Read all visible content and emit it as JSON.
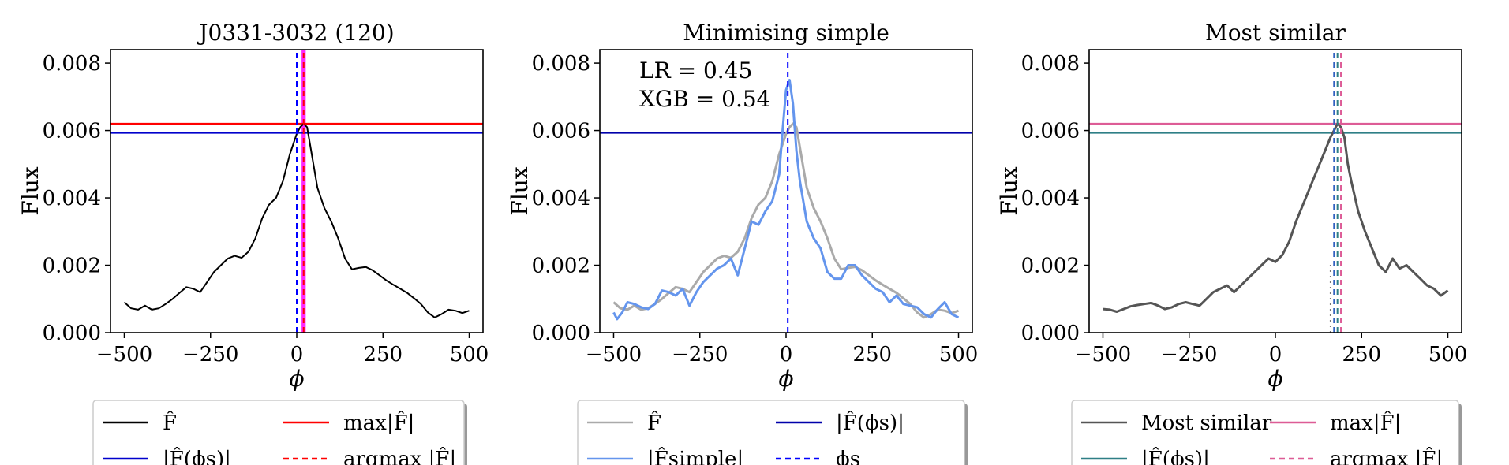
{
  "chart_data": [
    {
      "type": "line",
      "title": "J0331-3032 (120)",
      "xlabel": "ϕ",
      "ylabel": "Flux",
      "xlim": [
        -540,
        540
      ],
      "ylim": [
        0,
        0.0084
      ],
      "xticks": [
        -500,
        -250,
        0,
        250,
        500
      ],
      "xtick_labels": [
        "−500",
        "−250",
        "0",
        "250",
        "500"
      ],
      "yticks": [
        0,
        0.002,
        0.004,
        0.006,
        0.008
      ],
      "ytick_labels": [
        "0.000",
        "0.002",
        "0.004",
        "0.006",
        "0.008"
      ],
      "grid": false,
      "legend_position": "below",
      "series": [
        {
          "name": "F̂",
          "color": "#000000",
          "style": "solid",
          "x": [
            -500,
            -480,
            -460,
            -440,
            -420,
            -400,
            -380,
            -360,
            -340,
            -320,
            -300,
            -280,
            -260,
            -240,
            -220,
            -200,
            -180,
            -160,
            -140,
            -120,
            -100,
            -80,
            -60,
            -40,
            -20,
            0,
            10,
            20,
            30,
            40,
            60,
            80,
            100,
            120,
            140,
            160,
            180,
            200,
            220,
            240,
            260,
            280,
            300,
            320,
            340,
            360,
            380,
            400,
            420,
            440,
            460,
            480,
            500
          ],
          "values": [
            0.0009,
            0.00072,
            0.00068,
            0.0008,
            0.00068,
            0.00072,
            0.00085,
            0.001,
            0.00118,
            0.00135,
            0.0013,
            0.0012,
            0.0015,
            0.0018,
            0.002,
            0.0022,
            0.00228,
            0.00222,
            0.0024,
            0.0028,
            0.0034,
            0.0038,
            0.004,
            0.0045,
            0.0053,
            0.0059,
            0.0061,
            0.0062,
            0.0061,
            0.0055,
            0.0043,
            0.0037,
            0.0033,
            0.0028,
            0.0022,
            0.00188,
            0.00192,
            0.00195,
            0.00185,
            0.0017,
            0.00155,
            0.00142,
            0.0013,
            0.00118,
            0.00102,
            0.00085,
            0.0006,
            0.00045,
            0.00055,
            0.00068,
            0.00065,
            0.00058,
            0.00065
          ]
        }
      ],
      "hlines": [
        {
          "name": "max|F̂|",
          "y": 0.0062,
          "color": "#ff0000",
          "style": "solid"
        },
        {
          "name": "|F̂(ϕs)|",
          "y": 0.00593,
          "color": "#0000cc",
          "style": "solid"
        }
      ],
      "vlines": [
        {
          "x": 0,
          "color": "#0000ff",
          "style": "dashed"
        },
        {
          "x": 20,
          "color": "#ff0000",
          "style": "dashed"
        }
      ],
      "shaded_band": {
        "x0": 14,
        "x1": 26,
        "color": "#ff00ff"
      },
      "legend": [
        {
          "label": "F̂",
          "color": "#000000",
          "style": "solid"
        },
        {
          "label": "max|F̂|",
          "color": "#ff0000",
          "style": "solid"
        },
        {
          "label": "|F̂(ϕs)|",
          "color": "#0000cc",
          "style": "solid"
        },
        {
          "label": "argmax |F̂|",
          "color": "#ff0000",
          "style": "dashed"
        }
      ]
    },
    {
      "type": "line",
      "title": "Minimising simple",
      "xlabel": "ϕ",
      "ylabel": "Flux",
      "xlim": [
        -540,
        540
      ],
      "ylim": [
        0,
        0.0084
      ],
      "xticks": [
        -500,
        -250,
        0,
        250,
        500
      ],
      "xtick_labels": [
        "−500",
        "−250",
        "0",
        "250",
        "500"
      ],
      "yticks": [
        0,
        0.002,
        0.004,
        0.006,
        0.008
      ],
      "ytick_labels": [
        "0.000",
        "0.002",
        "0.004",
        "0.006",
        "0.008"
      ],
      "grid": false,
      "legend_position": "below",
      "annotations": [
        "LR = 0.45",
        "XGB = 0.54"
      ],
      "series": [
        {
          "name": "F̂",
          "color": "#aaaaaa",
          "style": "solid",
          "x": [
            -500,
            -480,
            -460,
            -440,
            -420,
            -400,
            -380,
            -360,
            -340,
            -320,
            -300,
            -280,
            -260,
            -240,
            -220,
            -200,
            -180,
            -160,
            -140,
            -120,
            -100,
            -80,
            -60,
            -40,
            -20,
            0,
            10,
            20,
            30,
            40,
            60,
            80,
            100,
            120,
            140,
            160,
            180,
            200,
            220,
            240,
            260,
            280,
            300,
            320,
            340,
            360,
            380,
            400,
            420,
            440,
            460,
            480,
            500
          ],
          "values": [
            0.0009,
            0.00072,
            0.00068,
            0.0008,
            0.00068,
            0.00072,
            0.00085,
            0.001,
            0.00118,
            0.00135,
            0.0013,
            0.0012,
            0.0015,
            0.0018,
            0.002,
            0.0022,
            0.00228,
            0.00222,
            0.0024,
            0.0028,
            0.0034,
            0.0038,
            0.004,
            0.0045,
            0.0053,
            0.0059,
            0.0061,
            0.0062,
            0.0061,
            0.0055,
            0.0043,
            0.0037,
            0.0033,
            0.0028,
            0.0022,
            0.00188,
            0.00192,
            0.00195,
            0.00185,
            0.0017,
            0.00155,
            0.00142,
            0.0013,
            0.00118,
            0.00102,
            0.00085,
            0.0006,
            0.00045,
            0.00055,
            0.00068,
            0.00065,
            0.00058,
            0.00065
          ]
        },
        {
          "name": "|F̂simple|",
          "color": "#6495ed",
          "style": "solid",
          "x": [
            -500,
            -490,
            -475,
            -460,
            -440,
            -420,
            -400,
            -380,
            -360,
            -340,
            -320,
            -300,
            -280,
            -260,
            -240,
            -220,
            -200,
            -180,
            -160,
            -140,
            -120,
            -100,
            -80,
            -60,
            -40,
            -20,
            -10,
            0,
            10,
            20,
            30,
            40,
            60,
            80,
            100,
            120,
            140,
            160,
            180,
            200,
            220,
            240,
            260,
            280,
            300,
            320,
            340,
            360,
            380,
            400,
            420,
            440,
            460,
            480,
            500
          ],
          "values": [
            0.0006,
            0.0004,
            0.0006,
            0.0009,
            0.00085,
            0.00075,
            0.0007,
            0.00085,
            0.00125,
            0.0012,
            0.0011,
            0.0013,
            0.0008,
            0.0012,
            0.0015,
            0.0017,
            0.0019,
            0.002,
            0.0022,
            0.0017,
            0.0025,
            0.0033,
            0.0032,
            0.0036,
            0.0039,
            0.0047,
            0.006,
            0.0072,
            0.0075,
            0.0068,
            0.0054,
            0.0045,
            0.0033,
            0.0028,
            0.0025,
            0.0018,
            0.0016,
            0.0016,
            0.002,
            0.002,
            0.0017,
            0.0015,
            0.0013,
            0.0012,
            0.0009,
            0.0011,
            0.00085,
            0.0008,
            0.00075,
            0.00055,
            0.00045,
            0.0007,
            0.0009,
            0.00055,
            0.00045
          ]
        }
      ],
      "hlines": [
        {
          "name": "|F̂(ϕs)|",
          "y": 0.00593,
          "color": "#0000aa",
          "style": "solid"
        }
      ],
      "vlines": [
        {
          "x": 5,
          "color": "#0000ff",
          "style": "dashed"
        }
      ],
      "legend": [
        {
          "label": "F̂",
          "color": "#aaaaaa",
          "style": "solid"
        },
        {
          "label": "|F̂(ϕs)|",
          "color": "#0000aa",
          "style": "solid"
        },
        {
          "label": "|F̂simple|",
          "color": "#6495ed",
          "style": "solid"
        },
        {
          "label": "ϕs",
          "color": "#0000ff",
          "style": "dashed"
        }
      ]
    },
    {
      "type": "line",
      "title": "Most similar",
      "xlabel": "ϕ",
      "ylabel": "Flux",
      "xlim": [
        -540,
        540
      ],
      "ylim": [
        0,
        0.0084
      ],
      "xticks": [
        -500,
        -250,
        0,
        250,
        500
      ],
      "xtick_labels": [
        "−500",
        "−250",
        "0",
        "250",
        "500"
      ],
      "yticks": [
        0,
        0.002,
        0.004,
        0.006,
        0.008
      ],
      "ytick_labels": [
        "0.000",
        "0.002",
        "0.004",
        "0.006",
        "0.008"
      ],
      "grid": false,
      "legend_position": "below",
      "series": [
        {
          "name": "Most similar",
          "color": "#555555",
          "style": "solid",
          "x": [
            -500,
            -480,
            -460,
            -440,
            -420,
            -400,
            -380,
            -360,
            -340,
            -320,
            -300,
            -280,
            -260,
            -240,
            -220,
            -200,
            -180,
            -160,
            -140,
            -120,
            -100,
            -80,
            -60,
            -40,
            -20,
            0,
            20,
            40,
            60,
            80,
            100,
            120,
            140,
            160,
            170,
            180,
            190,
            200,
            210,
            220,
            240,
            260,
            280,
            300,
            320,
            340,
            360,
            380,
            400,
            420,
            440,
            460,
            480,
            500
          ],
          "values": [
            0.0007,
            0.00068,
            0.00062,
            0.0007,
            0.00078,
            0.00082,
            0.00085,
            0.00088,
            0.0008,
            0.0007,
            0.00075,
            0.00085,
            0.0009,
            0.00085,
            0.0008,
            0.001,
            0.0012,
            0.0013,
            0.0014,
            0.0012,
            0.0014,
            0.0016,
            0.0018,
            0.002,
            0.0022,
            0.0021,
            0.0023,
            0.0027,
            0.0033,
            0.0038,
            0.0043,
            0.0048,
            0.0053,
            0.0058,
            0.006,
            0.0062,
            0.0061,
            0.0058,
            0.005,
            0.0045,
            0.0036,
            0.003,
            0.0025,
            0.002,
            0.0018,
            0.0022,
            0.0019,
            0.002,
            0.0018,
            0.0016,
            0.0014,
            0.0013,
            0.0011,
            0.00125
          ]
        }
      ],
      "hlines": [
        {
          "name": "max|F̂|",
          "y": 0.0062,
          "color": "#dd5c96",
          "style": "solid"
        },
        {
          "name": "|F̂(ϕs)|",
          "y": 0.00593,
          "color": "#2e7f86",
          "style": "solid"
        }
      ],
      "vlines": [
        {
          "x": 170,
          "color": "#3060c0",
          "style": "dashed"
        },
        {
          "x": 180,
          "color": "#2e7f86",
          "style": "dashed"
        },
        {
          "x": 190,
          "color": "#dd5c96",
          "style": "dashed"
        },
        {
          "x": 160,
          "color": "#777777",
          "style": "dotted",
          "ymax": 0.0021
        }
      ],
      "legend": [
        {
          "label": "Most similar",
          "color": "#555555",
          "style": "solid"
        },
        {
          "label": "max|F̂|",
          "color": "#dd5c96",
          "style": "solid"
        },
        {
          "label": "|F̂(ϕs)|",
          "color": "#2e7f86",
          "style": "solid"
        },
        {
          "label": "argmax |F̂|",
          "color": "#dd5c96",
          "style": "dashed"
        }
      ]
    }
  ]
}
